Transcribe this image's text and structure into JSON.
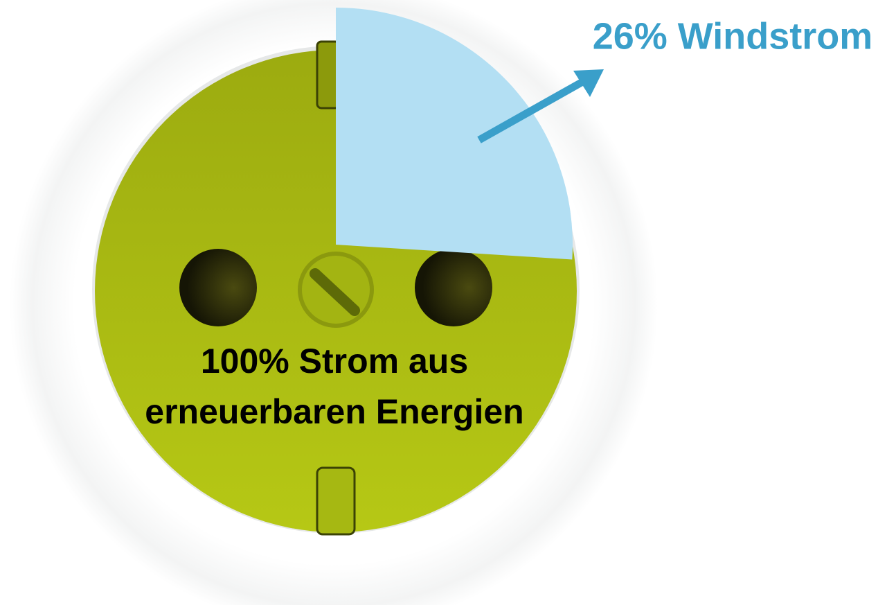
{
  "chart_data": {
    "type": "pie",
    "values": [
      26
    ],
    "value_labels": [
      "26% Windstrom"
    ],
    "colors": [
      "#b3dff3"
    ],
    "label_color": "#3a9fca",
    "annotations": [
      "100% Strom aus",
      "erneuerbaren Energien"
    ]
  }
}
